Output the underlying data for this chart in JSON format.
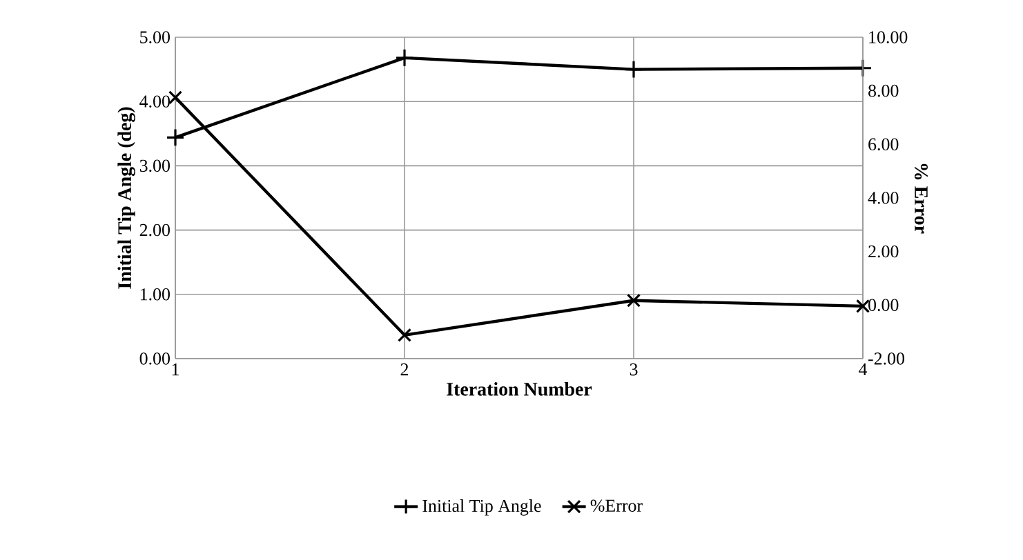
{
  "chart_data": {
    "type": "line",
    "x": [
      1,
      2,
      3,
      4
    ],
    "xlabel": "Iteration Number",
    "ylabel": "Initial Tip Angle (deg)",
    "y2label": "% Error",
    "series": [
      {
        "name": "Initial Tip Angle",
        "color": "#000000",
        "marker": "plus",
        "values": [
          3.44,
          4.68,
          4.5,
          4.52
        ]
      },
      {
        "name": "%Error",
        "color": "#000000",
        "marker": "cross",
        "axis": "y2",
        "values": [
          7.75,
          -1.12,
          0.17,
          -0.04
        ]
      }
    ],
    "xlim": [
      1,
      4
    ],
    "xticks": [
      1,
      2,
      3,
      4
    ],
    "ylim": [
      0,
      5
    ],
    "yticks": [
      {
        "value": 0,
        "label": "0.00"
      },
      {
        "value": 1,
        "label": "1.00"
      },
      {
        "value": 2,
        "label": "2.00"
      },
      {
        "value": 3,
        "label": "3.00"
      },
      {
        "value": 4,
        "label": "4.00"
      },
      {
        "value": 5,
        "label": "5.00"
      }
    ],
    "y2lim": [
      -2,
      10
    ],
    "y2ticks": [
      {
        "value": -2,
        "label": "-2.00"
      },
      {
        "value": 0,
        "label": "0.00"
      },
      {
        "value": 2,
        "label": "2.00"
      },
      {
        "value": 4,
        "label": "4.00"
      },
      {
        "value": 6,
        "label": "6.00"
      },
      {
        "value": 8,
        "label": "8.00"
      },
      {
        "value": 10,
        "label": "10.00"
      }
    ],
    "grid": true,
    "legend": "bottom",
    "line_style": "solid"
  }
}
